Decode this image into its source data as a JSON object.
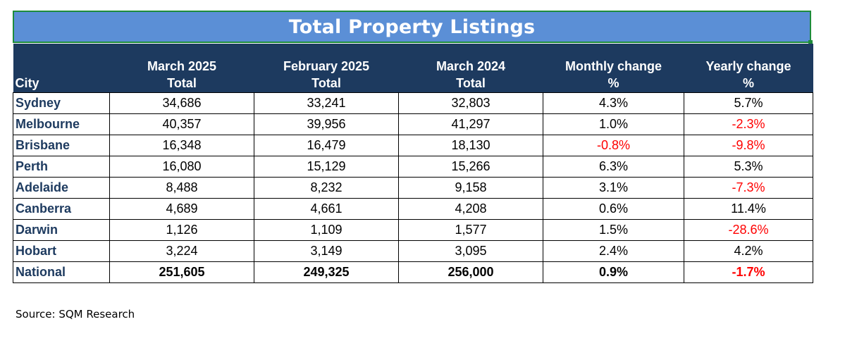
{
  "title": "Total Property Listings",
  "headers": {
    "city": "City",
    "mar2025": [
      "March 2025",
      "Total"
    ],
    "feb2025": [
      "February 2025",
      "Total"
    ],
    "mar2024": [
      "March 2024",
      "Total"
    ],
    "monthly": [
      "Monthly change",
      "%"
    ],
    "yearly": [
      "Yearly change",
      "%"
    ]
  },
  "rows": [
    {
      "city": "Sydney",
      "mar2025": "34,686",
      "feb2025": "33,241",
      "mar2024": "32,803",
      "monthly": "4.3%",
      "yearly": "5.7%"
    },
    {
      "city": "Melbourne",
      "mar2025": "40,357",
      "feb2025": "39,956",
      "mar2024": "41,297",
      "monthly": "1.0%",
      "yearly": "-2.3%"
    },
    {
      "city": "Brisbane",
      "mar2025": "16,348",
      "feb2025": "16,479",
      "mar2024": "18,130",
      "monthly": "-0.8%",
      "yearly": "-9.8%"
    },
    {
      "city": "Perth",
      "mar2025": "16,080",
      "feb2025": "15,129",
      "mar2024": "15,266",
      "monthly": "6.3%",
      "yearly": "5.3%"
    },
    {
      "city": "Adelaide",
      "mar2025": "8,488",
      "feb2025": "8,232",
      "mar2024": "9,158",
      "monthly": "3.1%",
      "yearly": "-7.3%"
    },
    {
      "city": "Canberra",
      "mar2025": "4,689",
      "feb2025": "4,661",
      "mar2024": "4,208",
      "monthly": "0.6%",
      "yearly": "11.4%"
    },
    {
      "city": "Darwin",
      "mar2025": "1,126",
      "feb2025": "1,109",
      "mar2024": "1,577",
      "monthly": "1.5%",
      "yearly": "-28.6%"
    },
    {
      "city": "Hobart",
      "mar2025": "3,224",
      "feb2025": "3,149",
      "mar2024": "3,095",
      "monthly": "2.4%",
      "yearly": "4.2%"
    },
    {
      "city": "National",
      "mar2025": "251,605",
      "feb2025": "249,325",
      "mar2024": "256,000",
      "monthly": "0.9%",
      "yearly": "-1.7%"
    }
  ],
  "source": "Source: SQM Research",
  "colors": {
    "title_bg": "#5b8fd6",
    "header_bg": "#1d3a5f",
    "negative": "#ff0000",
    "selection_border": "#1e8c3a"
  }
}
